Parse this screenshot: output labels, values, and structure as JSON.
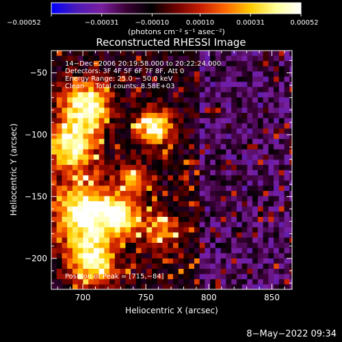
{
  "chart_data": {
    "type": "heatmap",
    "title": "Reconstructed RHESSI Image",
    "xlabel": "Heliocentric X (arcsec)",
    "ylabel": "Heliocentric Y (arcsec)",
    "xlim": [
      675,
      866
    ],
    "ylim": [
      -225,
      -32
    ],
    "xticks": [
      700,
      750,
      800,
      850
    ],
    "xtick_labels": [
      "700",
      "750",
      "800",
      "850"
    ],
    "yticks": [
      -50,
      -100,
      -150,
      -200
    ],
    "ytick_labels": [
      "−50",
      "−100",
      "−150",
      "−200"
    ],
    "colorbar": {
      "range": [
        -0.00052,
        0.00052
      ],
      "tick_labels": [
        "−0.00052",
        "−0.00031",
        "−0.00010",
        "0.00010",
        "0.00031",
        "0.00052"
      ],
      "unit_label": "(photons cm⁻² s⁻¹ asec⁻²)",
      "colors": [
        "#0000ff",
        "#4b1ab8",
        "#7a1fa0",
        "#3a0035",
        "#000000",
        "#6e0000",
        "#c81e00",
        "#ff6a00",
        "#ffcc00",
        "#ffff9a",
        "#ffffff"
      ]
    },
    "annotations": [
      "14−Dec−2006 20:19:58.000 to 20:22:24.000",
      "Detectors: 3F 4F 5F 6F 7F 8F, Att 0",
      "Energy Range: 25.0 − 50.0 keV",
      "Clean     Total counts: 8.58E+03"
    ],
    "peak_label": "Position of Peak = [715,−84]",
    "peak": [
      715,
      -84
    ],
    "hotspots": [
      {
        "x": 700,
        "y": -75,
        "sigma": 14,
        "amp": 0.95
      },
      {
        "x": 688,
        "y": -108,
        "sigma": 13,
        "amp": 0.9
      },
      {
        "x": 700,
        "y": -160,
        "sigma": 18,
        "amp": 1.0
      },
      {
        "x": 705,
        "y": -200,
        "sigma": 14,
        "amp": 0.85
      },
      {
        "x": 728,
        "y": -165,
        "sigma": 10,
        "amp": 0.8
      },
      {
        "x": 755,
        "y": -92,
        "sigma": 10,
        "amp": 0.95
      },
      {
        "x": 738,
        "y": -135,
        "sigma": 9,
        "amp": 0.55
      },
      {
        "x": 760,
        "y": -175,
        "sigma": 12,
        "amp": 0.55
      }
    ]
  },
  "footer": {
    "timestamp": "8−May−2022 09:34"
  }
}
